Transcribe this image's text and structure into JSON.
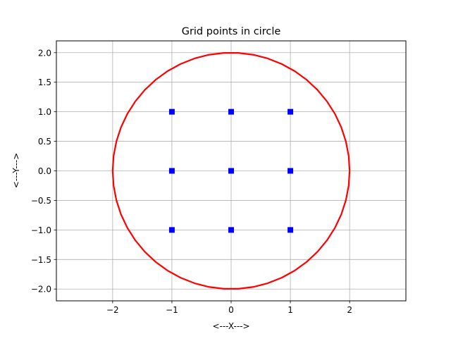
{
  "chart_data": {
    "type": "scatter",
    "title": "Grid points in circle",
    "xlabel": "<---X--->",
    "ylabel": "<---Y--->",
    "xlim": [
      -2.95,
      2.95
    ],
    "ylim": [
      -2.2,
      2.2
    ],
    "grid": true,
    "x_ticks": [
      -2,
      -1,
      0,
      1,
      2
    ],
    "x_tick_labels": [
      "−2",
      "−1",
      "0",
      "1",
      "2"
    ],
    "y_ticks": [
      -2.0,
      -1.5,
      -1.0,
      -0.5,
      0.0,
      0.5,
      1.0,
      1.5,
      2.0
    ],
    "y_tick_labels": [
      "−2.0",
      "−1.5",
      "−1.0",
      "−0.5",
      "0.0",
      "0.5",
      "1.0",
      "1.5",
      "2.0"
    ],
    "circle": {
      "center": [
        0,
        0
      ],
      "radius": 2,
      "color": "#ff0000"
    },
    "points": {
      "color": "#0000ff",
      "marker": "square",
      "x": [
        -1,
        0,
        1,
        -1,
        0,
        1,
        -1,
        0,
        1
      ],
      "y": [
        1,
        1,
        1,
        0,
        0,
        0,
        -1,
        -1,
        -1
      ]
    }
  }
}
